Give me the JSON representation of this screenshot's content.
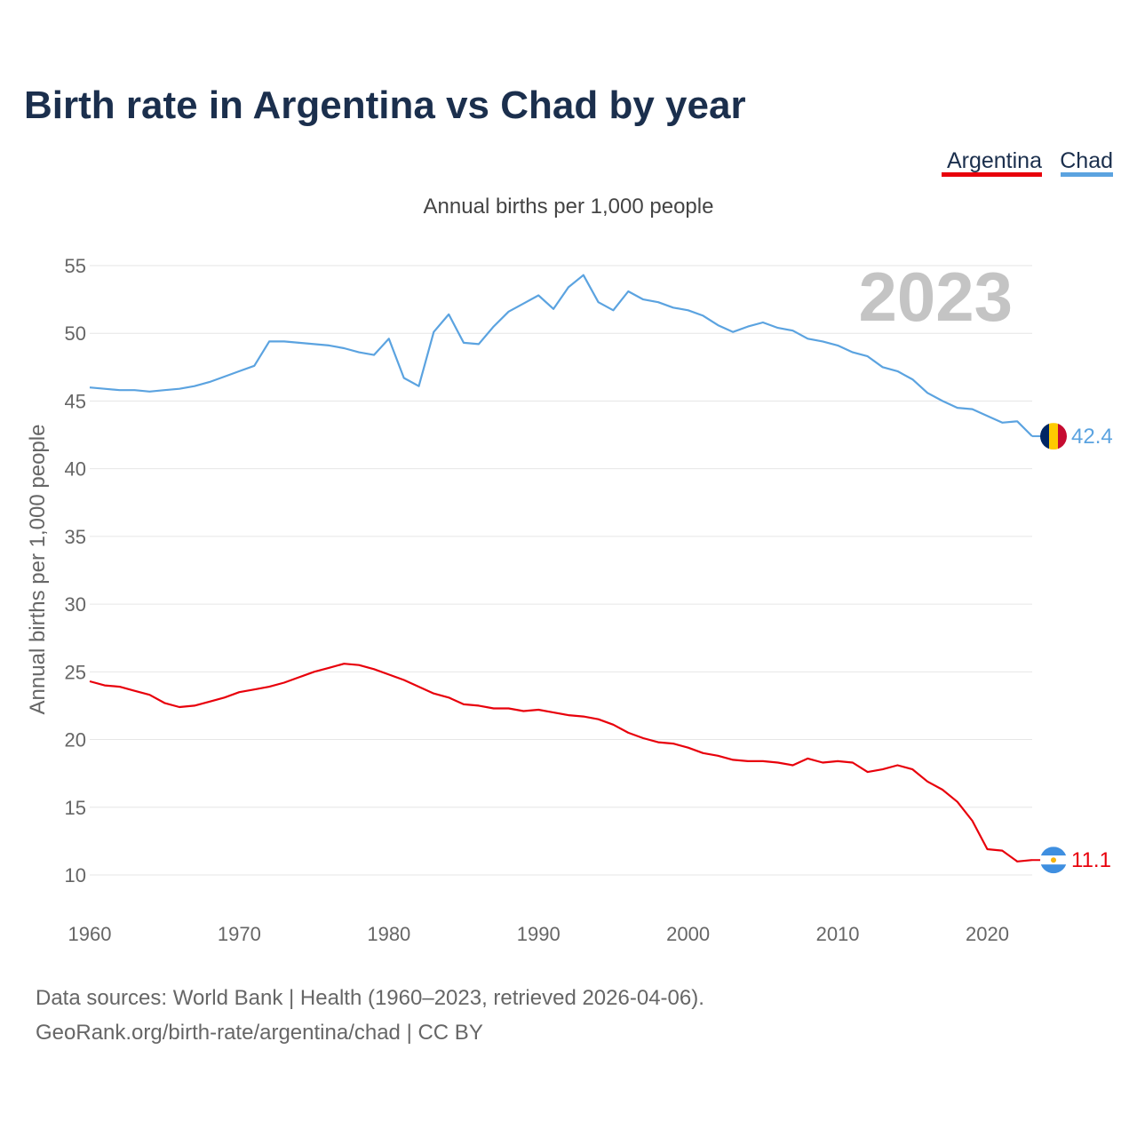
{
  "title": "Birth rate in Argentina vs Chad by year",
  "year_watermark": "2023",
  "sources": {
    "line1": "Data sources: World Bank | Health (1960–2023, retrieved 2026-04-06).",
    "line2": "GeoRank.org/birth-rate/argentina/chad | CC BY"
  },
  "colors": {
    "argentina": "#e8000b",
    "chad": "#5ba3e0",
    "title": "#1b2f4d"
  },
  "chart_data": {
    "type": "line",
    "title": "Birth rate in Argentina vs Chad by year",
    "subtitle": "Annual births per 1,000 people",
    "xlabel": "",
    "ylabel": "Annual births per 1,000 people",
    "xlim": [
      1960,
      2023
    ],
    "ylim": [
      8,
      56
    ],
    "yticks": [
      10,
      15,
      20,
      25,
      30,
      35,
      40,
      45,
      50,
      55
    ],
    "xticks": [
      1960,
      1970,
      1980,
      1990,
      2000,
      2010,
      2020
    ],
    "grid": true,
    "legend_position": "top-right",
    "x": [
      1960,
      1961,
      1962,
      1963,
      1964,
      1965,
      1966,
      1967,
      1968,
      1969,
      1970,
      1971,
      1972,
      1973,
      1974,
      1975,
      1976,
      1977,
      1978,
      1979,
      1980,
      1981,
      1982,
      1983,
      1984,
      1985,
      1986,
      1987,
      1988,
      1989,
      1990,
      1991,
      1992,
      1993,
      1994,
      1995,
      1996,
      1997,
      1998,
      1999,
      2000,
      2001,
      2002,
      2003,
      2004,
      2005,
      2006,
      2007,
      2008,
      2009,
      2010,
      2011,
      2012,
      2013,
      2014,
      2015,
      2016,
      2017,
      2018,
      2019,
      2020,
      2021,
      2022,
      2023
    ],
    "series": [
      {
        "name": "Argentina",
        "color": "#e8000b",
        "flag": "argentina-flag",
        "end_label": "11.1",
        "values": [
          24.3,
          24.0,
          23.9,
          23.6,
          23.3,
          22.7,
          22.4,
          22.5,
          22.8,
          23.1,
          23.5,
          23.7,
          23.9,
          24.2,
          24.6,
          25.0,
          25.3,
          25.6,
          25.5,
          25.2,
          24.8,
          24.4,
          23.9,
          23.4,
          23.1,
          22.6,
          22.5,
          22.3,
          22.3,
          22.1,
          22.2,
          22.0,
          21.8,
          21.7,
          21.5,
          21.1,
          20.5,
          20.1,
          19.8,
          19.7,
          19.4,
          19.0,
          18.8,
          18.5,
          18.4,
          18.4,
          18.3,
          18.1,
          18.6,
          18.3,
          18.4,
          18.3,
          17.6,
          17.8,
          18.1,
          17.8,
          16.9,
          16.3,
          15.4,
          14.0,
          11.9,
          11.8,
          11.0,
          11.1
        ]
      },
      {
        "name": "Chad",
        "color": "#5ba3e0",
        "flag": "chad-flag",
        "end_label": "42.4",
        "values": [
          46.0,
          45.9,
          45.8,
          45.8,
          45.7,
          45.8,
          45.9,
          46.1,
          46.4,
          46.8,
          47.2,
          47.6,
          49.4,
          49.4,
          49.3,
          49.2,
          49.1,
          48.9,
          48.6,
          48.4,
          49.6,
          46.7,
          46.1,
          50.1,
          51.4,
          49.3,
          49.2,
          50.5,
          51.6,
          52.2,
          52.8,
          51.8,
          53.4,
          54.3,
          52.3,
          51.7,
          53.1,
          52.5,
          52.3,
          51.9,
          51.7,
          51.3,
          50.6,
          50.1,
          50.5,
          50.8,
          50.4,
          50.2,
          49.6,
          49.4,
          49.1,
          48.6,
          48.3,
          47.5,
          47.2,
          46.6,
          45.6,
          45.0,
          44.5,
          44.4,
          43.9,
          43.4,
          43.5,
          42.4
        ]
      }
    ]
  }
}
